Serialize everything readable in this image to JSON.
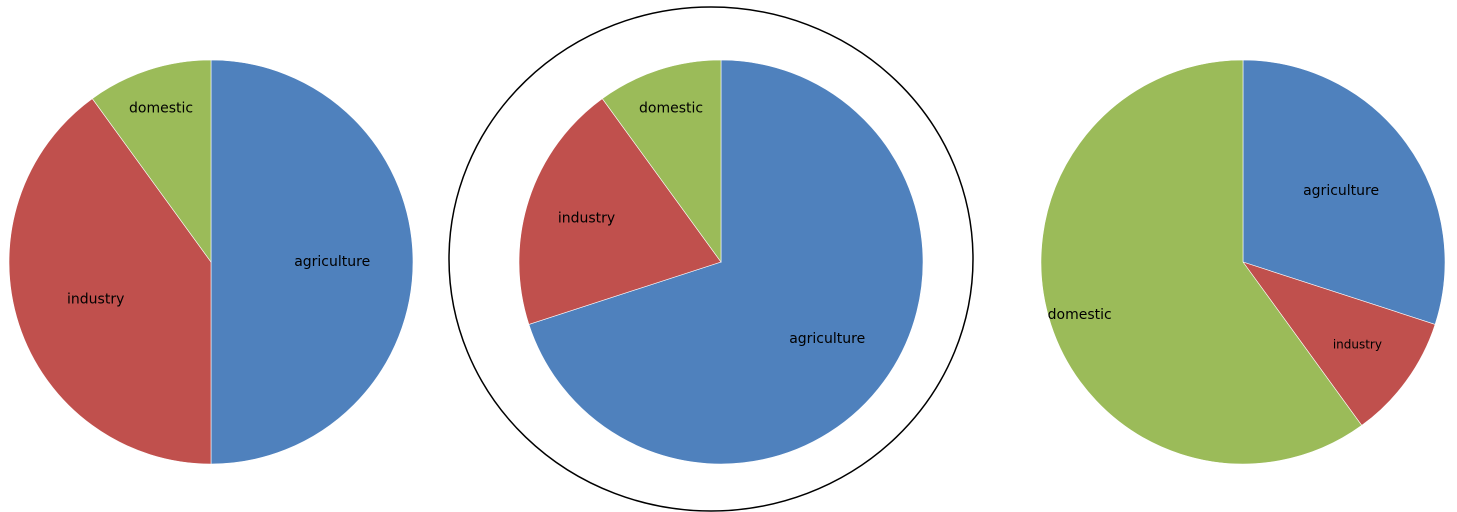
{
  "chart_data": [
    {
      "type": "pie",
      "highlighted": false,
      "colors": {
        "agriculture": "#4f81bd",
        "industry": "#c0504d",
        "domestic": "#9bbb59"
      },
      "slices": [
        {
          "label": "agriculture",
          "value": 50,
          "color": "#4f81bd"
        },
        {
          "label": "industry",
          "value": 40,
          "color": "#c0504d"
        },
        {
          "label": "domestic",
          "value": 10,
          "color": "#9bbb59"
        }
      ]
    },
    {
      "type": "pie",
      "highlighted": true,
      "slices": [
        {
          "label": "agriculture",
          "value": 70,
          "color": "#4f81bd"
        },
        {
          "label": "industry",
          "value": 20,
          "color": "#c0504d"
        },
        {
          "label": "domestic",
          "value": 10,
          "color": "#9bbb59"
        }
      ]
    },
    {
      "type": "pie",
      "highlighted": false,
      "slices": [
        {
          "label": "agriculture",
          "value": 30,
          "color": "#4f81bd"
        },
        {
          "label": "industry",
          "value": 10,
          "color": "#c0504d"
        },
        {
          "label": "domestic",
          "value": 60,
          "color": "#9bbb59"
        }
      ]
    }
  ]
}
